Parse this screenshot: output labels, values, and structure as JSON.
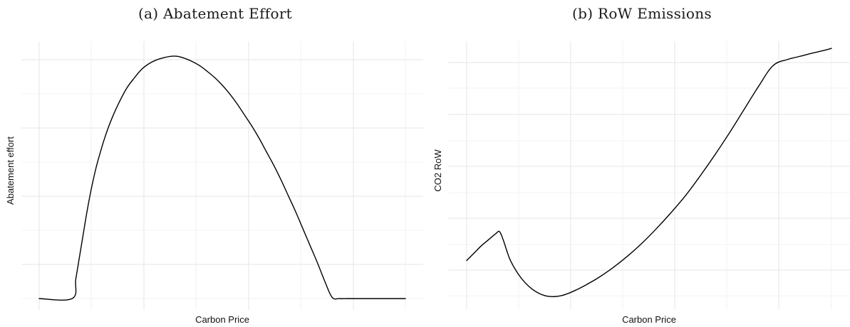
{
  "chart_data": [
    {
      "type": "line",
      "title": "(a) Abatement Effort",
      "xlabel": "Carbon Price",
      "ylabel": "Abatement effort",
      "grid": true,
      "legend": "none",
      "line_color": "#000000",
      "grid_color": "#e6e6e6",
      "xlim": [
        0,
        100
      ],
      "ylim": [
        -3,
        100
      ],
      "x": [
        0,
        9,
        10,
        11,
        12,
        13,
        14,
        15,
        16,
        18,
        20,
        22,
        24,
        26,
        28,
        30,
        32,
        34,
        36,
        38,
        40,
        42,
        44,
        46,
        48,
        50,
        52,
        54,
        56,
        58,
        60,
        62,
        64,
        66,
        68,
        70,
        72,
        74,
        76,
        78,
        80,
        82,
        84,
        86,
        88,
        89,
        90,
        91,
        100
      ],
      "y": [
        0,
        0,
        8,
        17,
        26,
        35,
        43,
        50,
        56,
        66,
        74,
        80.5,
        86,
        90,
        93.5,
        95.8,
        97.3,
        98.2,
        98.8,
        98.7,
        97.8,
        96.5,
        94.8,
        92.5,
        90,
        87,
        83.5,
        79.5,
        75,
        70.5,
        65.5,
        60,
        54.5,
        48.5,
        42,
        35.5,
        28.5,
        21.5,
        14.5,
        7,
        0.5,
        0,
        0,
        0,
        0,
        0,
        0,
        0,
        0
      ]
    },
    {
      "type": "line",
      "title": "(b) RoW Emissions",
      "xlabel": "Carbon Price",
      "ylabel": "CO2 RoW",
      "grid": true,
      "legend": "none",
      "line_color": "#000000",
      "grid_color": "#e6e6e6",
      "xlim": [
        0,
        100
      ],
      "ylim": [
        -3,
        100
      ],
      "x": [
        0,
        2,
        4,
        6,
        8,
        9,
        10,
        11,
        12,
        14,
        16,
        18,
        20,
        22,
        24,
        26,
        28,
        30,
        32,
        36,
        40,
        44,
        48,
        52,
        56,
        60,
        64,
        68,
        72,
        76,
        80,
        84,
        88,
        90,
        92,
        94,
        96,
        98,
        100
      ],
      "y": [
        15.5,
        18.5,
        21.5,
        24,
        26.5,
        27.3,
        24,
        19.5,
        15.5,
        10.3,
        6.5,
        3.8,
        2,
        1,
        0.8,
        1.2,
        2.2,
        3.5,
        5,
        8.4,
        12.5,
        17.2,
        22.5,
        28.5,
        35,
        42,
        50,
        58.5,
        67.5,
        77,
        86.5,
        95,
        97.5,
        98.3,
        99,
        99.8,
        100.5,
        101.2,
        102
      ]
    }
  ]
}
